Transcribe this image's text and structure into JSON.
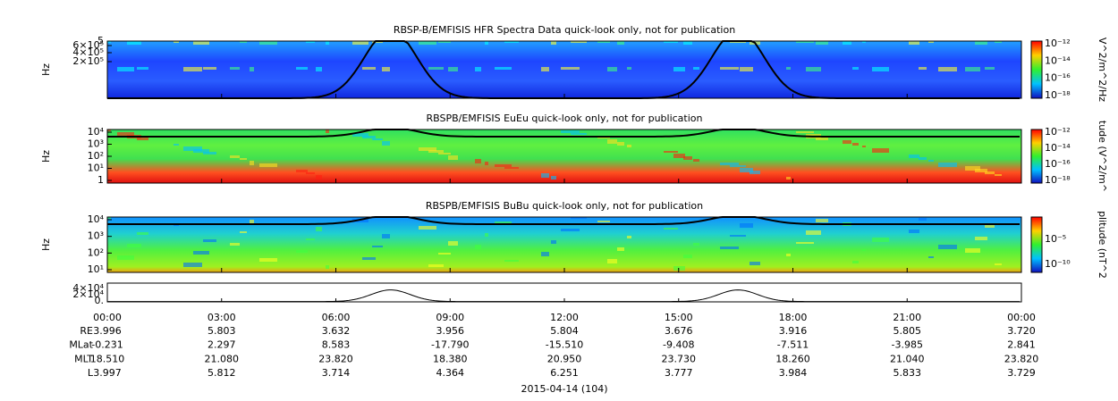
{
  "panels": [
    {
      "title": "RBSP-B/EMFISIS  HFR Spectra Data quick-look only, not for publication",
      "y_label": "Hz",
      "yticks": [
        "5",
        "6×10⁵",
        "4×10⁵",
        "2×10⁵"
      ],
      "colorbar_label": "V^2/m^2/Hz",
      "colorbar_ticks": [
        "10⁻¹²",
        "10⁻¹⁴",
        "10⁻¹⁶",
        "10⁻¹⁸"
      ]
    },
    {
      "title": "RBSPB/EMFISIS  EuEu quick-look only, not for publication",
      "y_label": "Hz",
      "yticks": [
        "10⁴",
        "10³",
        "10²",
        "10¹",
        "1"
      ],
      "colorbar_label": "tude (V^2/m^",
      "colorbar_ticks": [
        "10⁻¹²",
        "10⁻¹⁴",
        "10⁻¹⁶",
        "10⁻¹⁸"
      ]
    },
    {
      "title": "RBSPB/EMFISIS  BuBu quick-look only, not for publication",
      "y_label": "Hz",
      "yticks": [
        "10⁴",
        "10³",
        "10²",
        "10¹"
      ],
      "colorbar_label": "plitude (nT^2",
      "colorbar_ticks": [
        "10⁻⁵",
        "10⁻¹⁰"
      ]
    }
  ],
  "line_panel": {
    "yticks": [
      "4×10⁴",
      "2×10⁴",
      "0."
    ]
  },
  "time_ticks": [
    "00:00",
    "03:00",
    "06:00",
    "09:00",
    "12:00",
    "15:00",
    "18:00",
    "21:00",
    "00:00"
  ],
  "ephemeris": [
    {
      "label": "RE",
      "values": [
        "3.996",
        "5.803",
        "3.632",
        "3.956",
        "5.804",
        "3.676",
        "3.916",
        "5.805",
        "3.720"
      ]
    },
    {
      "label": "MLat",
      "values": [
        "-0.231",
        "2.297",
        "8.583",
        "-17.790",
        "-15.510",
        "-9.408",
        "-7.511",
        "-3.985",
        "2.841"
      ]
    },
    {
      "label": "MLT",
      "values": [
        "18.510",
        "21.080",
        "23.820",
        "18.380",
        "20.950",
        "23.730",
        "18.260",
        "21.040",
        "23.820"
      ]
    },
    {
      "label": "L",
      "values": [
        "3.997",
        "5.812",
        "3.714",
        "4.364",
        "6.251",
        "3.777",
        "3.984",
        "5.833",
        "3.729"
      ]
    }
  ],
  "date": "2015-04-14 (104)"
}
